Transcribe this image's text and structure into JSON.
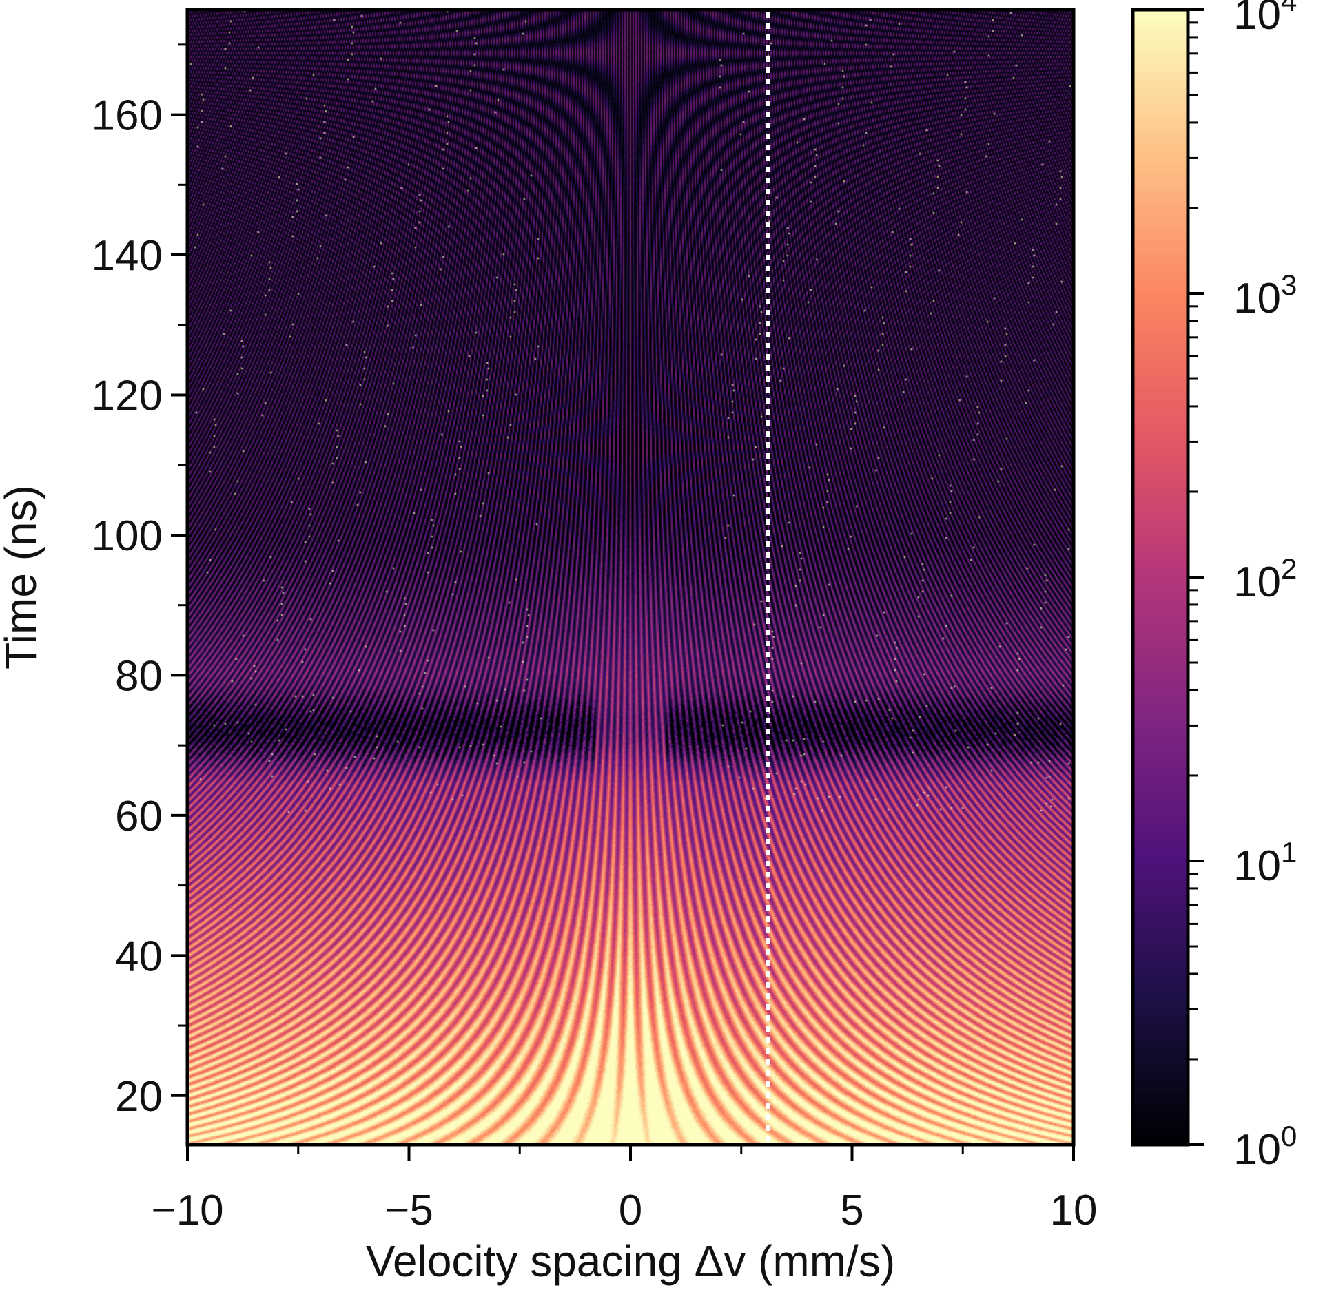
{
  "chart_data": {
    "type": "heatmap",
    "xlabel": "Velocity spacing Δv (mm/s)",
    "ylabel": "Time (ns)",
    "xlim": [
      -10,
      10
    ],
    "ylim": [
      13,
      175
    ],
    "xticks": [
      -10,
      -5,
      0,
      5,
      10
    ],
    "xtick_labels": [
      "−10",
      "−5",
      "0",
      "5",
      "10"
    ],
    "yticks": [
      20,
      40,
      60,
      80,
      100,
      120,
      140,
      160
    ],
    "yticks_labels": [
      "20",
      "40",
      "60",
      "80",
      "100",
      "120",
      "140",
      "160"
    ],
    "colorbar": {
      "scale": "log",
      "range": [
        1,
        10000
      ],
      "ticks": [
        {
          "value": 1,
          "base": "10",
          "exp": "0"
        },
        {
          "value": 10,
          "base": "10",
          "exp": "1"
        },
        {
          "value": 100,
          "base": "10",
          "exp": "2"
        },
        {
          "value": 1000,
          "base": "10",
          "exp": "3"
        },
        {
          "value": 10000,
          "base": "10",
          "exp": "4"
        }
      ],
      "colormap": "magma",
      "colormap_stops": [
        "#000004",
        "#1c1044",
        "#4f127b",
        "#812581",
        "#b5367a",
        "#e55964",
        "#fb8761",
        "#fec287",
        "#fcfdbf"
      ]
    },
    "marker_line": {
      "x": 3.1,
      "style": "dotted",
      "color": "#ffffff"
    },
    "description_pattern": "symmetric hyperbolic fringes; band period ~ 1/t",
    "noise_band_time": [
      65,
      80
    ],
    "grid": false
  }
}
